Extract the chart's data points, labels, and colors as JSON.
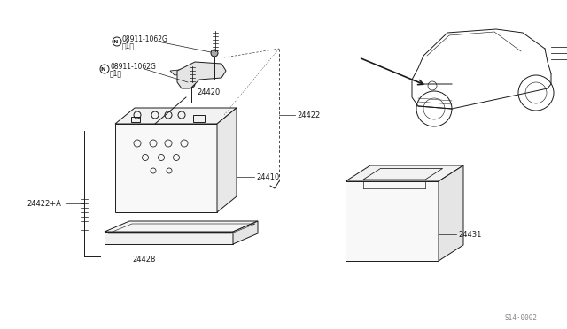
{
  "bg_color": "#ffffff",
  "line_color": "#1a1a1a",
  "labels": {
    "nut1": "N08911-1062G",
    "nut1_sub": "（1）",
    "nut2": "N08911-1062G",
    "nut2_sub": "（1）",
    "24420": "24420",
    "24422": "24422",
    "24422A": "24422+A",
    "24410": "24410",
    "24428": "24428",
    "24431": "24431",
    "watermark": "S14·0002"
  }
}
